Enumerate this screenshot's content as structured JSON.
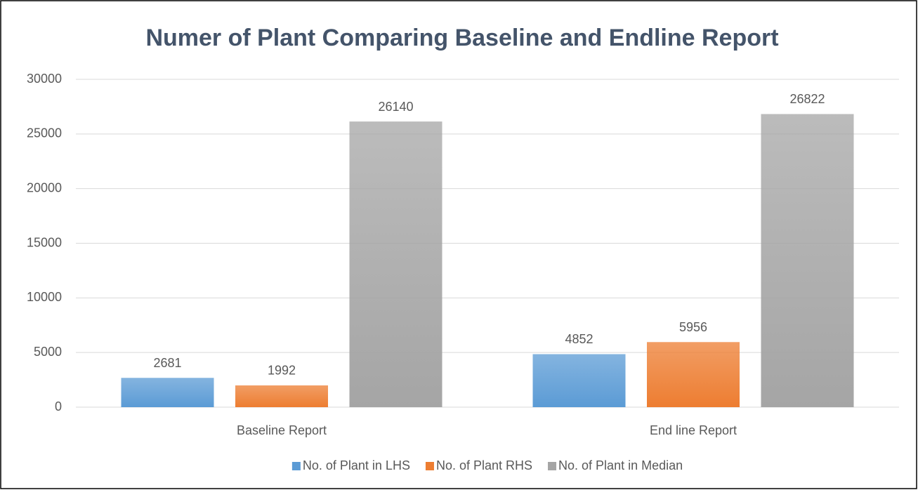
{
  "chart_data": {
    "type": "bar",
    "title": "Numer of Plant Comparing Baseline and Endline Report",
    "categories": [
      "Baseline Report",
      "End line Report"
    ],
    "series": [
      {
        "name": "No. of Plant in LHS",
        "color": "#5b9bd5",
        "values": [
          2681,
          4852
        ]
      },
      {
        "name": "No. of Plant RHS",
        "color": "#ed7d31",
        "values": [
          1992,
          5956
        ]
      },
      {
        "name": "No. of Plant in Median",
        "color": "#a5a5a5",
        "values": [
          26140,
          26822
        ]
      }
    ],
    "ylim": [
      0,
      30000
    ],
    "yticks": [
      0,
      5000,
      10000,
      15000,
      20000,
      25000,
      30000
    ],
    "grid": true,
    "legend": "bottom"
  }
}
